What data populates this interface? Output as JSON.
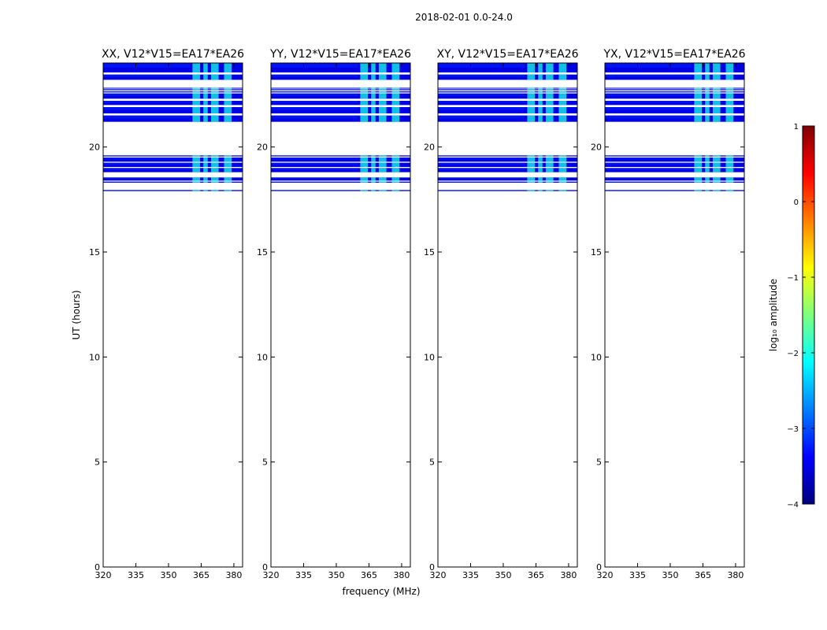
{
  "chart_data": {
    "type": "heatmap",
    "suptitle": "2018-02-01 0.0-24.0",
    "xlabel": "frequency (MHz)",
    "ylabel": "UT (hours)",
    "xlim": [
      320,
      384
    ],
    "ylim": [
      0,
      24
    ],
    "xticks": [
      320,
      335,
      350,
      365,
      380
    ],
    "yticks": [
      0,
      5,
      10,
      15,
      20
    ],
    "colorbar": {
      "label": "log₁₀ amplitude",
      "range": [
        -4,
        1
      ],
      "ticks": [
        1,
        0,
        -1,
        -2,
        -3,
        -4
      ],
      "colormap": [
        "#00007f",
        "#0000ff",
        "#007fff",
        "#00ffff",
        "#7fff7f",
        "#ffff00",
        "#ff7f00",
        "#ff0000",
        "#7f0000"
      ]
    },
    "panels": [
      {
        "title": "XX, V12*V15=EA17*EA26"
      },
      {
        "title": "YY, V12*V15=EA17*EA26"
      },
      {
        "title": "XY, V12*V15=EA17*EA26"
      },
      {
        "title": "YX, V12*V15=EA17*EA26"
      }
    ],
    "data_bands_hours": [
      [
        17.9,
        17.95
      ],
      [
        18.3,
        18.35
      ],
      [
        18.4,
        18.55
      ],
      [
        18.8,
        19.0
      ],
      [
        19.05,
        19.25
      ],
      [
        19.3,
        19.5
      ],
      [
        19.55,
        19.6
      ],
      [
        21.2,
        21.5
      ],
      [
        21.6,
        21.9
      ],
      [
        22.0,
        22.2
      ],
      [
        22.3,
        22.55
      ],
      [
        22.6,
        22.65
      ],
      [
        22.7,
        22.75
      ],
      [
        22.78,
        22.82
      ],
      [
        23.2,
        23.45
      ],
      [
        23.55,
        24.0
      ]
    ],
    "bright_channels_mhz": [
      [
        361,
        364.5
      ],
      [
        366,
        368
      ],
      [
        369.5,
        373
      ],
      [
        375.5,
        379
      ]
    ],
    "background_log_amplitude": -3.2,
    "bright_log_amplitude": -2.0
  }
}
